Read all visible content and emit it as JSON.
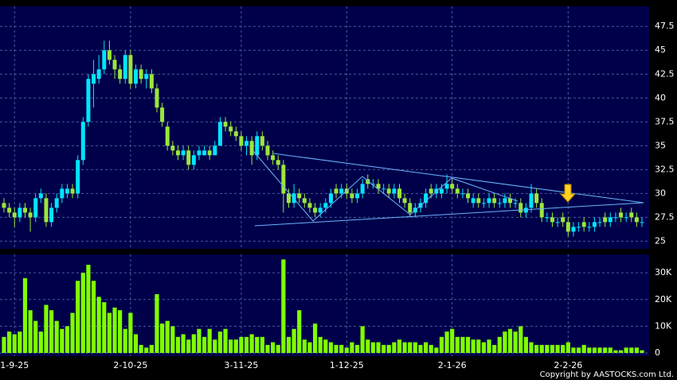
{
  "chart_data": {
    "type": "candlestick",
    "categories": [
      null,
      null,
      "1-9-25",
      null,
      null,
      null,
      null,
      null,
      null,
      null,
      null,
      null,
      null,
      null,
      null,
      null,
      null,
      null,
      null,
      null,
      null,
      null,
      null,
      null,
      "2-10-25",
      null,
      null,
      null,
      null,
      null,
      null,
      null,
      null,
      null,
      null,
      null,
      null,
      null,
      null,
      null,
      null,
      null,
      null,
      null,
      null,
      "3-11-25",
      null,
      null,
      null,
      null,
      null,
      null,
      null,
      null,
      null,
      null,
      null,
      null,
      null,
      null,
      null,
      null,
      null,
      null,
      null,
      "1-12-25",
      null,
      null,
      null,
      null,
      null,
      null,
      null,
      null,
      null,
      null,
      null,
      null,
      null,
      null,
      null,
      null,
      null,
      null,
      null,
      "2-1-26",
      null,
      null,
      null,
      null,
      null,
      null,
      null,
      null,
      null,
      null,
      null,
      null,
      null,
      null,
      null,
      null,
      null,
      null,
      null,
      null,
      null,
      "2-2-26",
      null,
      null,
      null,
      null,
      null,
      null,
      null,
      null,
      null,
      null,
      null,
      null,
      null,
      null
    ],
    "open": [
      29,
      28.5,
      28,
      27.5,
      28.5,
      28,
      27.5,
      29.5,
      29.5,
      27,
      28.5,
      29.5,
      30,
      30.5,
      30,
      33.5,
      37.5,
      41.5,
      42,
      43,
      45,
      44,
      43,
      42,
      44.5,
      41.5,
      43,
      42,
      42.5,
      41,
      39,
      37,
      35,
      34.5,
      34,
      34.5,
      33,
      34,
      34,
      34.5,
      34,
      35,
      37.5,
      37,
      36.5,
      36,
      35,
      35.5,
      34,
      36,
      35,
      34,
      33.5,
      33,
      30,
      29,
      30,
      29.5,
      29,
      28.5,
      28,
      28.5,
      29,
      30.5,
      30,
      30.5,
      30,
      29.5,
      30,
      31.5,
      31,
      31,
      30.5,
      30.5,
      30,
      30.5,
      29.5,
      29,
      28,
      28.5,
      29,
      30.5,
      30,
      30,
      30.5,
      31,
      30.5,
      30,
      30,
      29,
      29.5,
      29,
      29,
      29.5,
      29,
      29,
      29.5,
      29,
      29,
      28,
      28.5,
      30,
      29,
      27.5,
      27.5,
      27,
      27.5,
      27,
      26,
      26.5,
      27,
      26.5,
      26.5,
      27,
      27.5,
      27,
      27.5,
      28,
      27.5,
      28,
      27.5,
      27
    ],
    "high": [
      29.5,
      29,
      28.5,
      29,
      29,
      28.5,
      30,
      30.5,
      30,
      29,
      30,
      31,
      31,
      31,
      34,
      38,
      42.5,
      44,
      44.5,
      46,
      46,
      44.5,
      43.5,
      45,
      45,
      43.5,
      43.5,
      43,
      43,
      41.5,
      39.5,
      37.5,
      35.5,
      35,
      35,
      35,
      34.5,
      35,
      35,
      35,
      35.5,
      38,
      38,
      37.5,
      37,
      36.5,
      36,
      36,
      36.5,
      36.5,
      35.5,
      34.5,
      34,
      33.5,
      30.5,
      31,
      30.5,
      30,
      29.5,
      29,
      29,
      29.5,
      30.5,
      31,
      31,
      31,
      30.5,
      30.5,
      31.5,
      32,
      31.5,
      31.5,
      31,
      31,
      31,
      31,
      30,
      29.5,
      29,
      29.5,
      30.5,
      31,
      31,
      31,
      32,
      31.5,
      31,
      30.5,
      30.5,
      30,
      30,
      29.5,
      30,
      30,
      29.5,
      30,
      30,
      29.5,
      29.5,
      29,
      31,
      30.5,
      29.5,
      28,
      28,
      27.5,
      28,
      27.5,
      27,
      27,
      27.5,
      27,
      27.5,
      27.5,
      28,
      28,
      28,
      28.5,
      28,
      28.5,
      28,
      27.5
    ],
    "low": [
      28,
      27.5,
      26.5,
      27,
      27.5,
      26,
      27,
      29,
      26.5,
      26.5,
      28,
      29,
      29.5,
      29.5,
      29.5,
      33,
      37,
      39,
      41.5,
      42.5,
      43.5,
      42,
      41.5,
      41.5,
      41,
      41,
      41.5,
      41,
      40.5,
      38.5,
      37,
      34.5,
      34,
      33.5,
      33.5,
      32.5,
      32.5,
      33.5,
      34,
      33.5,
      34,
      35,
      36.5,
      36,
      35.5,
      34.5,
      34,
      33,
      33.5,
      34.5,
      33.5,
      33,
      32.5,
      28,
      28.5,
      28.5,
      29,
      28.5,
      28,
      27.5,
      27.5,
      28,
      28.5,
      29.5,
      29.5,
      29.5,
      29,
      29,
      29.5,
      30.5,
      30.5,
      30,
      30,
      29.5,
      29.5,
      29,
      28.5,
      27.5,
      27.5,
      28,
      28.5,
      29.5,
      29.5,
      29.5,
      30,
      30,
      29.5,
      29.5,
      29,
      28.5,
      28.5,
      28.5,
      28.5,
      28.5,
      28.5,
      28.5,
      28.5,
      28.5,
      27.5,
      27.5,
      28,
      28.5,
      27,
      27,
      26.5,
      26.5,
      26.5,
      25.5,
      25.5,
      26,
      26,
      26,
      26,
      26.5,
      26.5,
      26.5,
      27,
      27,
      27,
      27,
      26.5,
      26.5
    ],
    "close": [
      28.5,
      28,
      27.5,
      28.5,
      28,
      27.5,
      29.5,
      30,
      27,
      28.5,
      29.5,
      30.5,
      30.5,
      30,
      33.5,
      37.5,
      42,
      42.5,
      43,
      45,
      44,
      43,
      42,
      44.5,
      41.5,
      43,
      42,
      42.5,
      41,
      39,
      37.5,
      35,
      34.5,
      34,
      34.5,
      33,
      34,
      34.5,
      34.5,
      34,
      35,
      37.5,
      37,
      36.5,
      36,
      35,
      35.5,
      34,
      36,
      35,
      34,
      33.5,
      33,
      30,
      29,
      30,
      29.5,
      29,
      28.5,
      28,
      28.5,
      29,
      30,
      30,
      30.5,
      30,
      29.5,
      30,
      31,
      31,
      31,
      30.5,
      30.5,
      30,
      30.5,
      29.5,
      29,
      28,
      28.5,
      29,
      30,
      30,
      30.5,
      30.5,
      31,
      30.5,
      30,
      30,
      29.5,
      29.5,
      29,
      29,
      29.5,
      29,
      29,
      29.5,
      29,
      29,
      28,
      28.5,
      30,
      29,
      27.5,
      27.5,
      27,
      27,
      27,
      26,
      26.5,
      26.5,
      26.5,
      26.5,
      27,
      27,
      27,
      27.5,
      27.5,
      27.5,
      27.5,
      27.5,
      27,
      27
    ],
    "volume": [
      6000,
      8000,
      7000,
      8000,
      28000,
      16000,
      12000,
      8000,
      18000,
      16000,
      12000,
      9000,
      10000,
      15000,
      27000,
      30000,
      33000,
      27000,
      21000,
      19000,
      15000,
      17000,
      16000,
      9000,
      15000,
      7000,
      3000,
      2000,
      3000,
      22000,
      11000,
      12000,
      10000,
      6000,
      7000,
      5000,
      7000,
      9000,
      6000,
      9000,
      5000,
      8000,
      9000,
      5000,
      5000,
      6000,
      6000,
      7000,
      6000,
      6000,
      3000,
      4000,
      3000,
      35000,
      6000,
      9000,
      16000,
      5000,
      4000,
      11000,
      6000,
      5000,
      4000,
      3000,
      3000,
      2000,
      4000,
      3000,
      10000,
      5000,
      4000,
      4000,
      3000,
      3000,
      4000,
      5000,
      4000,
      4000,
      4000,
      3000,
      4000,
      3000,
      2000,
      6000,
      8000,
      9000,
      6000,
      6000,
      6000,
      5000,
      5000,
      4000,
      5000,
      3000,
      6000,
      8000,
      9000,
      8000,
      10000,
      6000,
      4000,
      3000,
      3000,
      3000,
      3000,
      3000,
      3000,
      4000,
      2000,
      2000,
      3000,
      2000,
      2000,
      2000,
      2000,
      2000,
      1000,
      1000,
      2000,
      2000,
      2000,
      1000
    ],
    "up_color": "#00e5ff",
    "down_color": "#9be63c",
    "volume_color": "#80ff00",
    "ylim": [
      24.2,
      49.6
    ],
    "yticks": [
      25,
      27.5,
      30,
      32.5,
      35,
      37.5,
      40,
      42.5,
      45,
      47.5
    ],
    "y2lim": [
      -1200,
      36900
    ],
    "y2ticks": [
      0,
      {
        "value": 10000,
        "label": "10K"
      },
      {
        "value": 20000,
        "label": "20K"
      },
      {
        "value": 30000,
        "label": "30K"
      }
    ],
    "grid": true,
    "copyright": "Copyright by AASTOCKS.com Ltd."
  }
}
